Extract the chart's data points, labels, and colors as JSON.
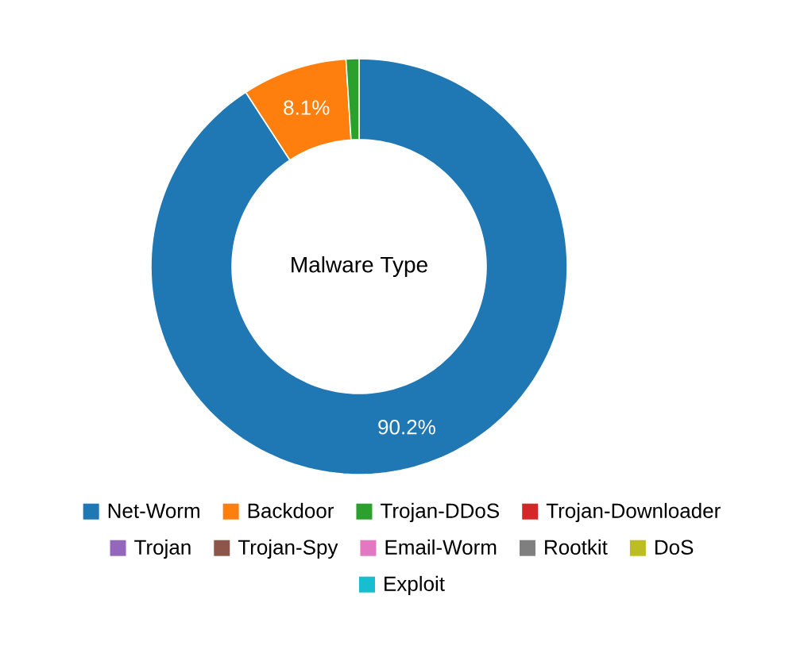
{
  "chart_data": {
    "type": "donut",
    "title": "Malware Type",
    "categories": [
      "Net-Worm",
      "Backdoor",
      "Trojan-DDoS",
      "Trojan-Downloader",
      "Trojan",
      "Trojan-Spy",
      "Email-Worm",
      "Rootkit",
      "DoS",
      "Exploit"
    ],
    "values": [
      90.2,
      8.1,
      1.0,
      null,
      null,
      null,
      null,
      null,
      null,
      null
    ],
    "colors": [
      "#1f77b4",
      "#ff7f0e",
      "#2ca02c",
      "#d62728",
      "#9467bd",
      "#8c564b",
      "#e377c2",
      "#7f7f7f",
      "#bcbd22",
      "#17becf"
    ],
    "value_labels": [
      "90.2%",
      "8.1%",
      null,
      null,
      null,
      null,
      null,
      null,
      null,
      null
    ],
    "legend": "bottom"
  }
}
